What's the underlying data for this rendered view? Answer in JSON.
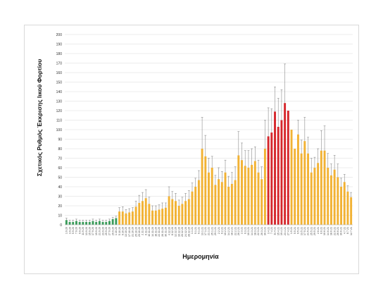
{
  "chart_data": {
    "type": "bar",
    "xlabel": "Ημερομηνία",
    "ylabel": "Σχετικός Ρυθμός Έκκρισης Ιικού Φορτίου",
    "ylim": [
      0,
      200
    ],
    "yticks": [
      0,
      10,
      20,
      30,
      40,
      50,
      60,
      70,
      80,
      90,
      100,
      110,
      120,
      130,
      140,
      150,
      160,
      170,
      180,
      190,
      200
    ],
    "grid": true,
    "legend": "none",
    "colors": {
      "green": "#3a9c5a",
      "orange": "#f2b233",
      "red": "#d6262b",
      "error_bar": "#8c8c8c",
      "grid": "#d9d9d9"
    },
    "values": [
      5,
      3,
      3,
      4,
      3,
      3,
      3,
      3,
      4,
      3,
      4,
      3,
      3,
      4,
      6,
      7,
      14,
      14,
      12,
      13,
      14,
      19,
      23,
      25,
      28,
      22,
      15,
      15,
      16,
      17,
      18,
      30,
      27,
      25,
      20,
      22,
      25,
      27,
      35,
      40,
      47,
      80,
      72,
      55,
      60,
      42,
      48,
      45,
      55,
      40,
      43,
      47,
      73,
      68,
      62,
      60,
      63,
      67,
      55,
      48,
      80,
      93,
      97,
      119,
      103,
      110,
      128,
      120,
      100,
      80,
      95,
      75,
      88,
      75,
      55,
      60,
      65,
      78,
      78,
      60,
      52,
      58,
      50,
      40,
      45,
      35,
      29
    ],
    "errors": [
      2,
      2,
      2,
      2,
      2,
      2,
      2,
      2,
      2,
      2,
      2,
      2,
      2,
      2,
      2,
      2,
      4,
      5,
      4,
      4,
      4,
      6,
      8,
      9,
      9,
      7,
      5,
      5,
      5,
      6,
      5,
      10,
      8,
      8,
      6,
      7,
      8,
      9,
      9,
      9,
      10,
      33,
      22,
      15,
      12,
      10,
      12,
      11,
      13,
      11,
      12,
      14,
      25,
      18,
      16,
      18,
      17,
      15,
      13,
      13,
      30,
      30,
      25,
      26,
      30,
      32,
      41,
      0,
      0,
      0,
      15,
      14,
      25,
      17,
      15,
      11,
      15,
      21,
      26,
      15,
      12,
      15,
      14,
      9,
      8,
      6,
      5
    ],
    "bar_colors": [
      "green",
      "green",
      "green",
      "green",
      "green",
      "green",
      "green",
      "green",
      "green",
      "green",
      "green",
      "green",
      "green",
      "green",
      "green",
      "green",
      "orange",
      "orange",
      "orange",
      "orange",
      "orange",
      "orange",
      "orange",
      "orange",
      "orange",
      "orange",
      "orange",
      "orange",
      "orange",
      "orange",
      "orange",
      "orange",
      "orange",
      "orange",
      "orange",
      "orange",
      "orange",
      "orange",
      "orange",
      "orange",
      "orange",
      "orange",
      "orange",
      "orange",
      "orange",
      "orange",
      "orange",
      "orange",
      "orange",
      "orange",
      "orange",
      "orange",
      "orange",
      "orange",
      "orange",
      "orange",
      "orange",
      "orange",
      "orange",
      "orange",
      "orange",
      "red",
      "red",
      "red",
      "red",
      "red",
      "red",
      "red",
      "orange",
      "orange",
      "orange",
      "orange",
      "orange",
      "orange",
      "orange",
      "orange",
      "orange",
      "orange",
      "orange",
      "orange",
      "orange",
      "orange",
      "orange",
      "orange",
      "orange",
      "orange",
      "orange"
    ],
    "categories": [
      "1.9.20",
      "3.9.20",
      "5.9.20",
      "7.9.20",
      "9.9.20",
      "11.9.20",
      "13.9.20",
      "15.9.20",
      "17.9.20",
      "19.9.20",
      "21.9.20",
      "23.9.20",
      "25.9.20",
      "27.9.20",
      "29.9.20",
      "1.10.20",
      "5.10.20",
      "9.10.20",
      "13.10.20",
      "17.10.20",
      "21.10.20",
      "25.10.20",
      "29.10.20",
      "2.11.20",
      "6.11.20",
      "10.11.20",
      "14.11.20",
      "18.11.20",
      "22.11.20",
      "26.11.20",
      "30.11.20",
      "4.12.20",
      "8.12.20",
      "12.12.20",
      "16.12.20",
      "20.12.20",
      "24.12.20",
      "28.12.20",
      "1.1.21",
      "5.1.21",
      "9.1.21",
      "13.1.21",
      "17.1.21",
      "21.1.21",
      "25.1.21",
      "29.1.21",
      "2.2.21",
      "6.2.21",
      "10.2.21",
      "14.2.21",
      "18.2.21",
      "22.2.21",
      "26.2.21",
      "2.3.21",
      "6.3.21",
      "10.3.21",
      "14.3.21",
      "18.3.21",
      "22.3.21",
      "26.3.21",
      "30.3.21",
      "3.4.21",
      "7.4.21",
      "11.4.21",
      "15.4.21",
      "19.4.21",
      "23.4.21",
      "27.4.21",
      "1.5.21",
      "5.5.21",
      "9.5.21",
      "13.5.21",
      "17.5.21",
      "21.5.21",
      "25.5.21",
      "29.5.21",
      "2.6.21",
      "6.6.21",
      "10.6.21",
      "14.6.21",
      "18.6.21",
      "22.6.21",
      "26.6.21",
      "30.6.21",
      "4.7.21",
      "8.7.21",
      "12.7.21"
    ]
  }
}
